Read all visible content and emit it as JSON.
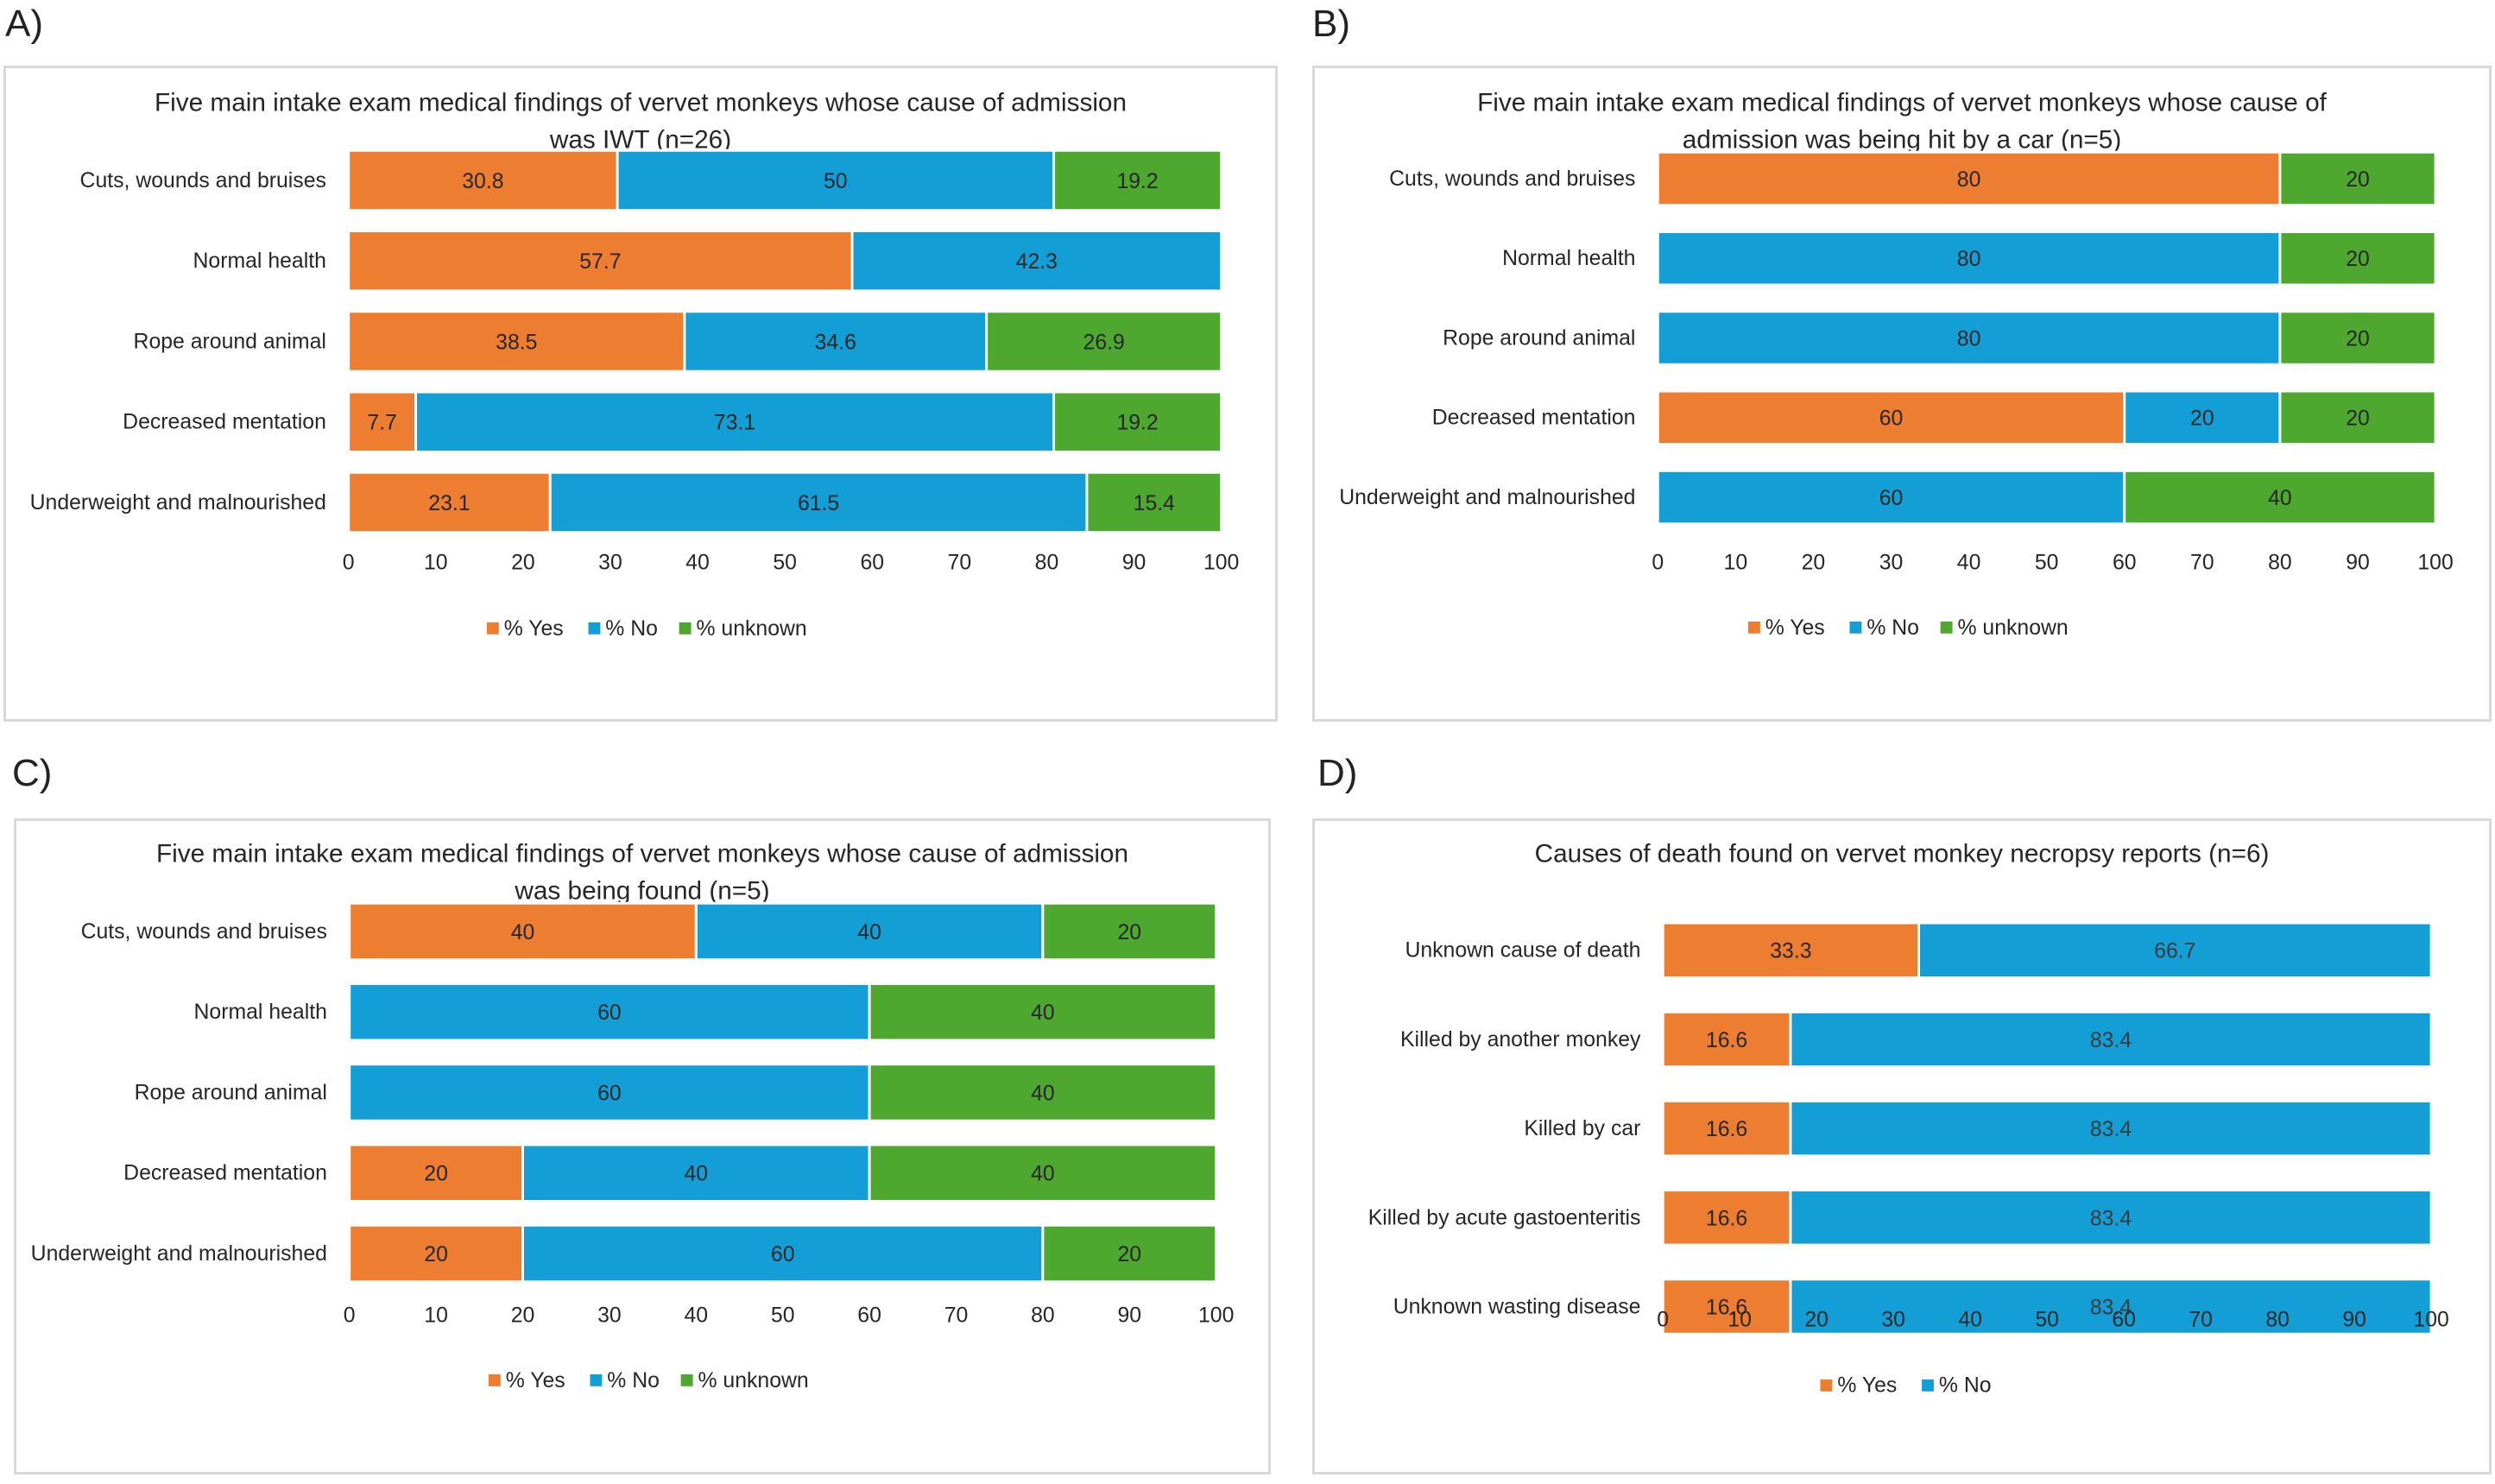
{
  "panels": {
    "a": "A)",
    "b": "B)",
    "c": "C)",
    "d": "D)"
  },
  "chart_data": [
    {
      "type": "bar",
      "orientation": "horizontal",
      "stacked": true,
      "title": "Five main intake exam medical findings of vervet monkeys whose cause of admission was IWT (n=26)",
      "title_lines": [
        "Five main intake exam medical findings of vervet monkeys whose cause of admission",
        "was IWT (n=26)"
      ],
      "categories": [
        "Cuts, wounds and bruises",
        "Normal health",
        "Rope around animal",
        "Decreased mentation",
        "Underweight and malnourished"
      ],
      "series": [
        {
          "name": "% Yes",
          "color": "#ed7d31",
          "values": [
            30.8,
            57.7,
            38.5,
            7.7,
            23.1
          ]
        },
        {
          "name": "% No",
          "color": "#139fd6",
          "values": [
            50,
            42.3,
            34.6,
            73.1,
            61.5
          ]
        },
        {
          "name": "% unknown",
          "color": "#4ea72e",
          "values": [
            19.2,
            null,
            26.9,
            19.2,
            15.4
          ]
        }
      ],
      "xlim": [
        0,
        100
      ],
      "xticks": [
        "0",
        "10",
        "20",
        "30",
        "40",
        "50",
        "60",
        "70",
        "80",
        "90",
        "100"
      ],
      "legend": "bottom",
      "grid": false
    },
    {
      "type": "bar",
      "orientation": "horizontal",
      "stacked": true,
      "title": "Five main intake exam medical findings of vervet monkeys whose cause of admission was being hit by a car (n=5)",
      "title_lines": [
        "Five main intake exam medical findings of vervet monkeys whose cause of",
        "admission was being hit by a car (n=5)"
      ],
      "categories": [
        "Cuts, wounds and bruises",
        "Normal health",
        "Rope around animal",
        "Decreased mentation",
        "Underweight and malnourished"
      ],
      "series": [
        {
          "name": "% Yes",
          "color": "#ed7d31",
          "values": [
            80,
            null,
            null,
            60,
            null
          ]
        },
        {
          "name": "% No",
          "color": "#139fd6",
          "values": [
            null,
            80,
            80,
            20,
            60
          ]
        },
        {
          "name": "% unknown",
          "color": "#4ea72e",
          "values": [
            20,
            20,
            20,
            20,
            40
          ]
        }
      ],
      "xlim": [
        0,
        100
      ],
      "xticks": [
        "0",
        "10",
        "20",
        "30",
        "40",
        "50",
        "60",
        "70",
        "80",
        "90",
        "100"
      ],
      "legend": "bottom",
      "grid": false
    },
    {
      "type": "bar",
      "orientation": "horizontal",
      "stacked": true,
      "title": "Five main intake exam medical findings of vervet monkeys whose cause of admission was being found (n=5)",
      "title_lines": [
        "Five main intake exam medical findings of vervet monkeys whose cause of admission",
        "was being found (n=5)"
      ],
      "categories": [
        "Cuts, wounds and bruises",
        "Normal health",
        "Rope around animal",
        "Decreased mentation",
        "Underweight and malnourished"
      ],
      "series": [
        {
          "name": "% Yes",
          "color": "#ed7d31",
          "values": [
            40,
            null,
            null,
            20,
            20
          ]
        },
        {
          "name": "% No",
          "color": "#139fd6",
          "values": [
            40,
            60,
            60,
            40,
            60
          ]
        },
        {
          "name": "% unknown",
          "color": "#4ea72e",
          "values": [
            20,
            40,
            40,
            40,
            20
          ]
        }
      ],
      "xlim": [
        0,
        100
      ],
      "xticks": [
        "0",
        "10",
        "20",
        "30",
        "40",
        "50",
        "60",
        "70",
        "80",
        "90",
        "100"
      ],
      "legend": "bottom",
      "grid": false
    },
    {
      "type": "bar",
      "orientation": "horizontal",
      "stacked": true,
      "title": "Causes of death found on vervet monkey necropsy reports (n=6)",
      "title_lines": [
        "Causes of death found on vervet monkey necropsy reports (n=6)"
      ],
      "categories": [
        "Unknown cause of death",
        "Killed by another monkey",
        "Killed by car",
        "Killed by acute gastoenteritis",
        "Unknown wasting disease"
      ],
      "series": [
        {
          "name": "% Yes",
          "color": "#ed7d31",
          "values": [
            33.3,
            16.6,
            16.6,
            16.6,
            16.6
          ]
        },
        {
          "name": "% No",
          "color": "#139fd6",
          "values": [
            66.7,
            83.4,
            83.4,
            83.4,
            83.4
          ]
        }
      ],
      "xlim": [
        0,
        100
      ],
      "xticks": [
        "0",
        "10",
        "20",
        "30",
        "40",
        "50",
        "60",
        "70",
        "80",
        "90",
        "100"
      ],
      "legend": "bottom",
      "grid": false
    }
  ]
}
